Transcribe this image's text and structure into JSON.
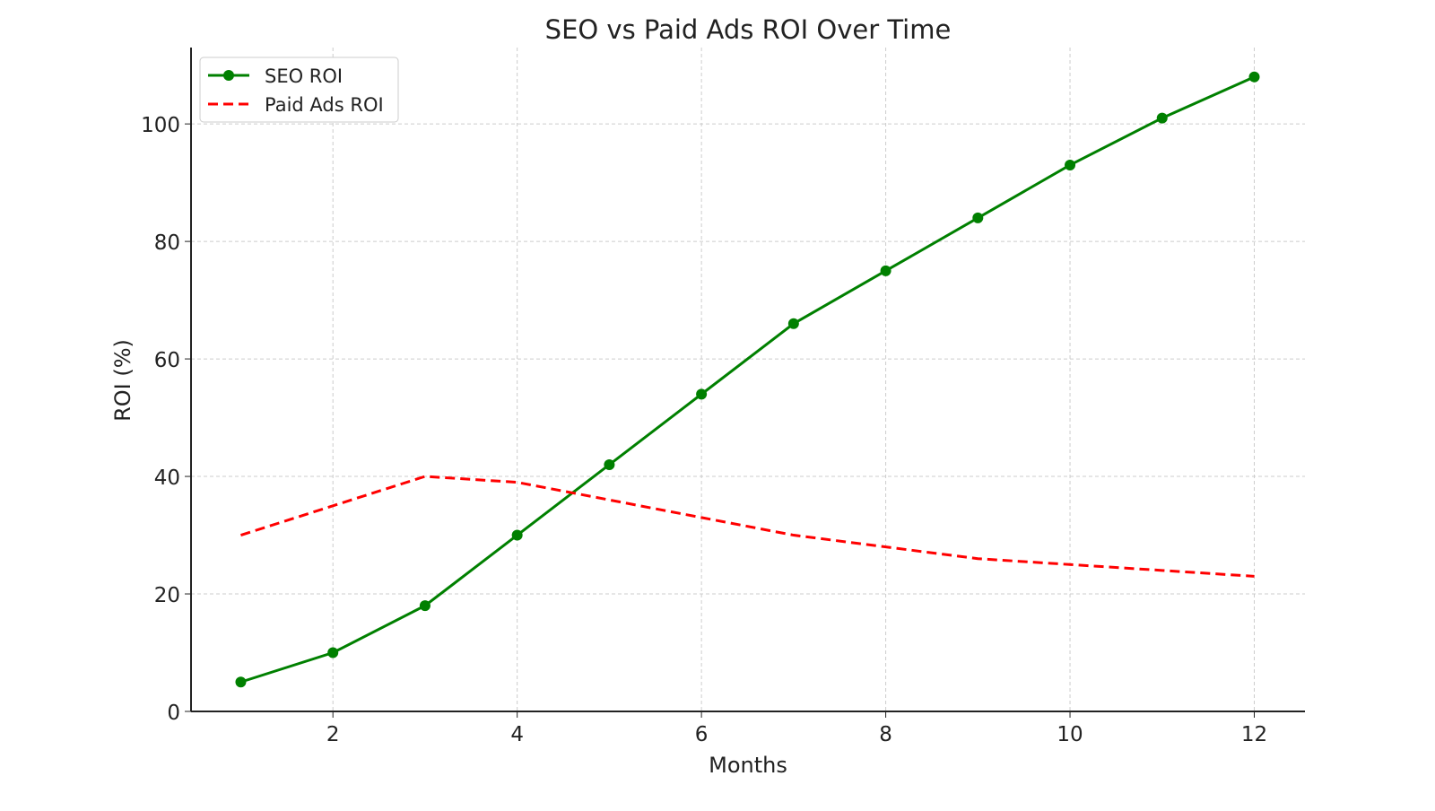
{
  "chart_data": {
    "type": "line",
    "title": "SEO vs Paid Ads ROI Over Time",
    "xlabel": "Months",
    "ylabel": "ROI (%)",
    "x": [
      1,
      2,
      3,
      4,
      5,
      6,
      7,
      8,
      9,
      10,
      11,
      12
    ],
    "xlim": [
      0.46,
      12.55
    ],
    "ylim": [
      0,
      113
    ],
    "xticks": [
      2,
      4,
      6,
      8,
      10,
      12
    ],
    "yticks": [
      0,
      20,
      40,
      60,
      80,
      100
    ],
    "grid": true,
    "legend_position": "top-left",
    "series": [
      {
        "name": "SEO ROI",
        "color": "#008000",
        "style": "solid-marker",
        "values": [
          5,
          10,
          18,
          30,
          42,
          54,
          66,
          75,
          84,
          93,
          101,
          108
        ]
      },
      {
        "name": "Paid Ads ROI",
        "color": "#ff0000",
        "style": "dashed",
        "values": [
          30,
          35,
          40,
          39,
          36,
          33,
          30,
          28,
          26,
          25,
          24,
          23
        ]
      }
    ]
  }
}
